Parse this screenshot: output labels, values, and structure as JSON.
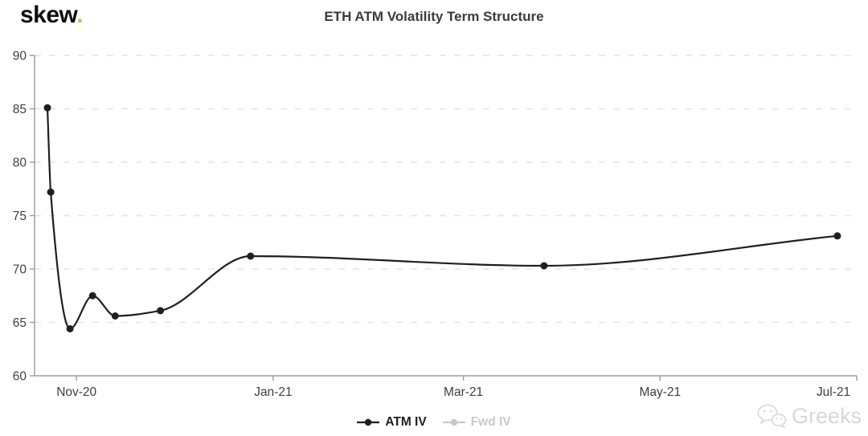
{
  "header": {
    "logo_text": "skew",
    "logo_dot": ".",
    "logo_dot_color": "#dfaf4f"
  },
  "chart_data": {
    "type": "line",
    "title": "ETH ATM Volatility Term Structure",
    "x_axis": {
      "tick_labels": [
        "Nov-20",
        "Jan-21",
        "Mar-21",
        "May-21",
        "Jul-21"
      ],
      "tick_days_from_nov20": [
        0,
        61,
        120,
        181,
        242
      ],
      "range_days": [
        -13,
        242
      ]
    },
    "y_axis": {
      "tick_labels": [
        "90",
        "85",
        "80",
        "75",
        "70",
        "65",
        "60"
      ],
      "tick_values": [
        90,
        85,
        80,
        75,
        70,
        65,
        60
      ],
      "ylim": [
        60,
        90
      ],
      "grid": "horizontal-dashed"
    },
    "series": [
      {
        "name": "ATM IV",
        "color": "#1f1f1f",
        "visible": true,
        "points": [
          {
            "x_days": -9,
            "value": 85.1
          },
          {
            "x_days": -8,
            "value": 77.2
          },
          {
            "x_days": -2,
            "value": 64.4
          },
          {
            "x_days": 5,
            "value": 67.5
          },
          {
            "x_days": 12,
            "value": 65.6
          },
          {
            "x_days": 26,
            "value": 66.1
          },
          {
            "x_days": 54,
            "value": 71.2
          },
          {
            "x_days": 145,
            "value": 70.3
          },
          {
            "x_days": 236,
            "value": 73.1
          }
        ]
      },
      {
        "name": "Fwd IV",
        "color": "#c9c9c9",
        "visible": false,
        "points": []
      }
    ],
    "legend_position": "bottom-center",
    "colors": {
      "gridline": "#e4e4e4",
      "axis": "#9b9b9b",
      "title": "#3b3b3b",
      "tick_label": "#3e3e3e"
    }
  },
  "watermark": {
    "text": "Greeks",
    "icon": "wechat-icon",
    "color": "#d7d7d7"
  }
}
